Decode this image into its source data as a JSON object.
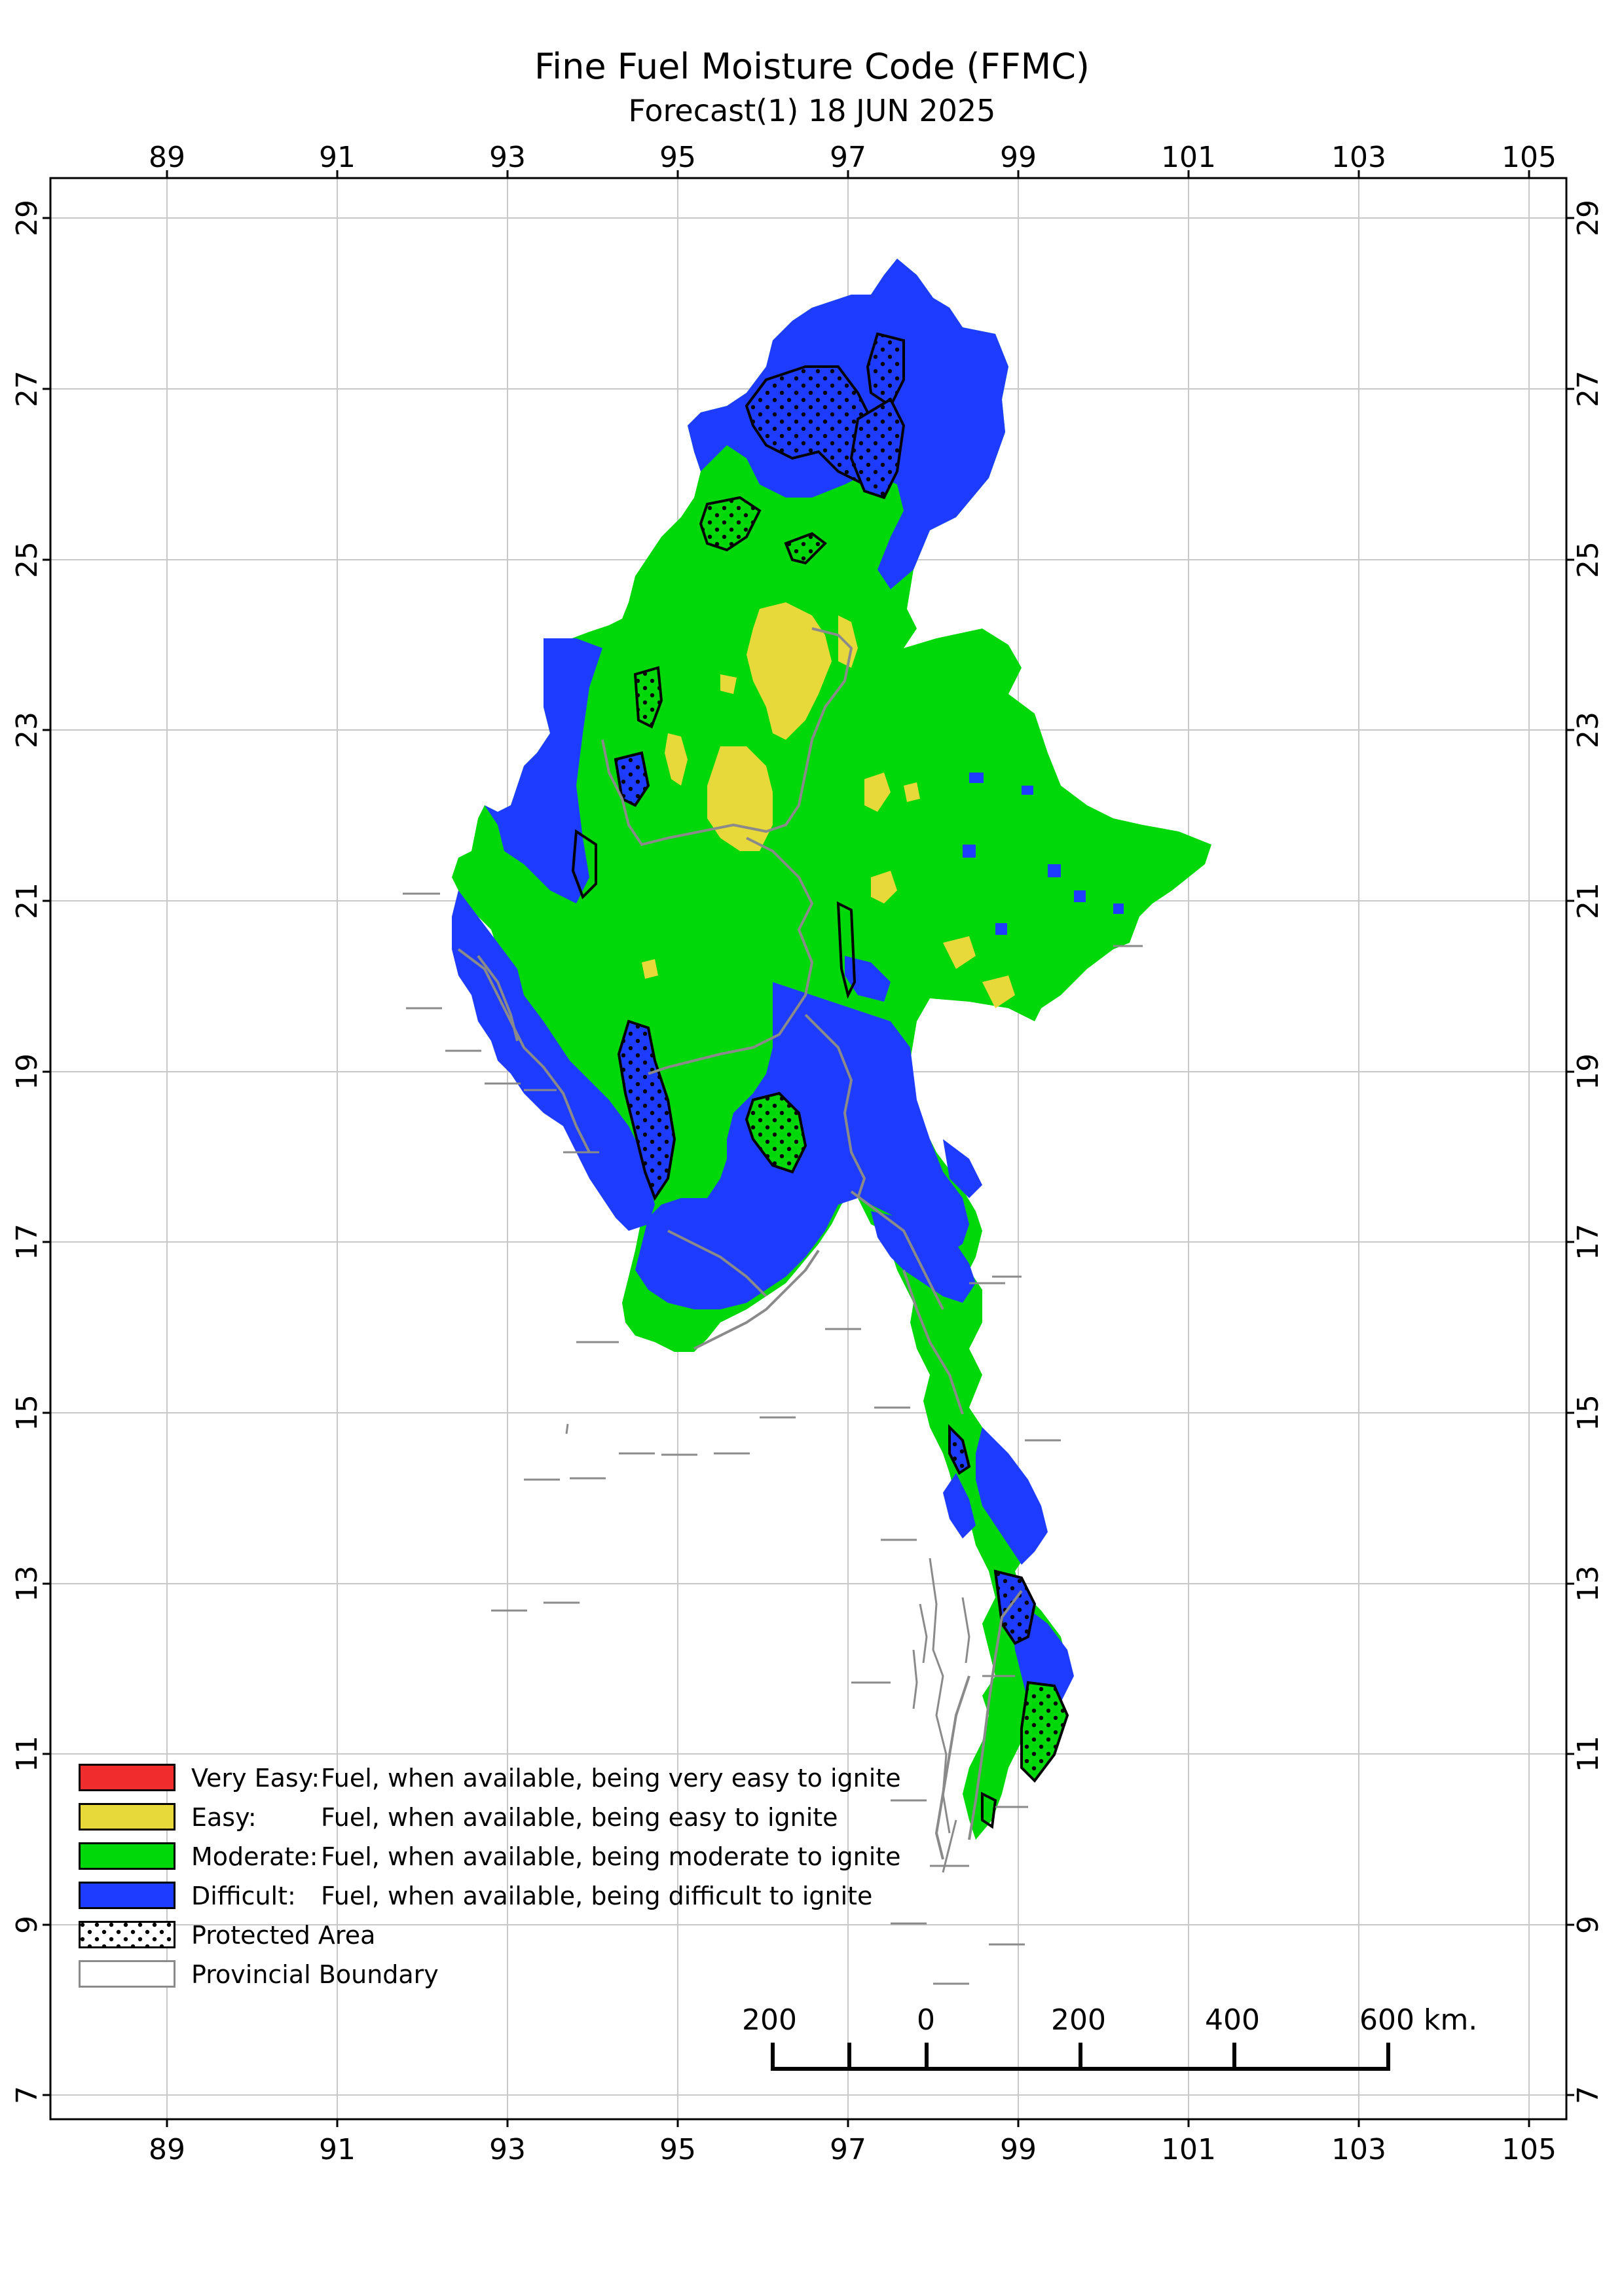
{
  "title": "Fine Fuel Moisture Code (FFMC)",
  "subtitle": "Forecast(1) 18 JUN 2025",
  "longitude_ticks": [
    "89",
    "91",
    "93",
    "95",
    "97",
    "99",
    "101",
    "103",
    "105"
  ],
  "latitude_ticks": [
    "29",
    "27",
    "25",
    "23",
    "21",
    "19",
    "17",
    "15",
    "13",
    "11",
    "9",
    "7"
  ],
  "legend": [
    {
      "term": "Very Easy:",
      "description": "Fuel, when available, being very easy to ignite",
      "color": "#f02c2c"
    },
    {
      "term": "Easy:",
      "description": "Fuel, when available, being easy to ignite",
      "color": "#e8d93a"
    },
    {
      "term": "Moderate:",
      "description": "Fuel, when available, being moderate to ignite",
      "color": "#00d80a"
    },
    {
      "term": "Difficult:",
      "description": "Fuel, when available, being difficult to ignite",
      "color": "#1e3cff"
    },
    {
      "term": "Protected Area",
      "description": "",
      "color": "#ffffff"
    },
    {
      "term": "Provincial Boundary",
      "description": "",
      "color": "#ffffff"
    }
  ],
  "scale_bar": {
    "labels": [
      "200",
      "0",
      "200",
      "400",
      "600 km."
    ]
  },
  "colors": {
    "very_easy": "#f02c2c",
    "easy": "#e8d93a",
    "moderate": "#00d80a",
    "difficult": "#1e3cff",
    "boundary": "#8a8a8a",
    "protected_outline": "#000000",
    "grid": "#c8c8c8"
  }
}
